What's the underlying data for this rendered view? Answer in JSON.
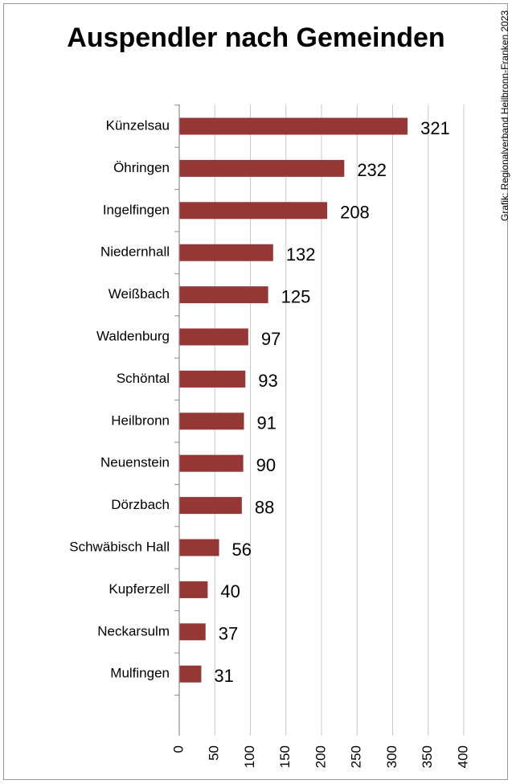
{
  "title": "Auspendler nach Gemeinden",
  "credit": "Grafik: Regionalverband Heilbronn-Franken 2023",
  "colors": {
    "bar": "#953735",
    "grid": "#c8c8c8",
    "axis": "#8c8c8c"
  },
  "chart_data": {
    "type": "bar",
    "orientation": "horizontal",
    "title": "Auspendler nach Gemeinden",
    "categories": [
      "Künzelsau",
      "Öhringen",
      "Ingelfingen",
      "Niedernhall",
      "Weißbach",
      "Waldenburg",
      "Schöntal",
      "Heilbronn",
      "Neuenstein",
      "Dörzbach",
      "Schwäbisch Hall",
      "Kupferzell",
      "Neckarsulm",
      "Mulfingen"
    ],
    "values": [
      321,
      232,
      208,
      132,
      125,
      97,
      93,
      91,
      90,
      88,
      56,
      40,
      37,
      31
    ],
    "xlim": [
      0,
      400
    ],
    "xticks": [
      "0",
      "50",
      "100",
      "150",
      "200",
      "250",
      "300",
      "350",
      "400"
    ],
    "grid": true,
    "legend": "none"
  }
}
